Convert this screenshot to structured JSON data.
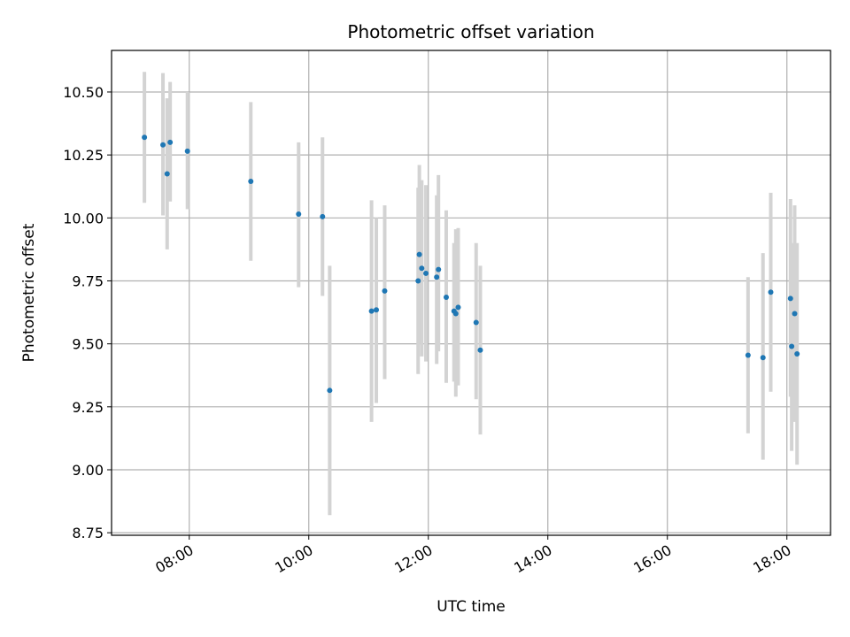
{
  "chart_data": {
    "type": "scatter",
    "title": "Photometric offset variation",
    "xlabel": "UTC time",
    "ylabel": "Photometric offset",
    "x_unit": "hour",
    "xlim": [
      6.7,
      18.73
    ],
    "ylim": [
      8.74,
      10.665
    ],
    "x_ticks": [
      8,
      10,
      12,
      14,
      16,
      18
    ],
    "x_tick_labels": [
      "08:00",
      "10:00",
      "12:00",
      "14:00",
      "16:00",
      "18:00"
    ],
    "y_ticks": [
      8.75,
      9.0,
      9.25,
      9.5,
      9.75,
      10.0,
      10.25,
      10.5
    ],
    "y_tick_labels": [
      "8.75",
      "9.00",
      "9.25",
      "9.50",
      "9.75",
      "10.00",
      "10.25",
      "10.50"
    ],
    "grid": true,
    "marker_color": "#1f77b4",
    "errorbar_color": "#d3d3d3",
    "points": [
      {
        "x": 7.25,
        "y": 10.32,
        "yerr_low": 10.06,
        "yerr_high": 10.58
      },
      {
        "x": 7.56,
        "y": 10.29,
        "yerr_low": 10.01,
        "yerr_high": 10.575
      },
      {
        "x": 7.63,
        "y": 10.175,
        "yerr_low": 9.875,
        "yerr_high": 10.475
      },
      {
        "x": 7.68,
        "y": 10.3,
        "yerr_low": 10.065,
        "yerr_high": 10.54
      },
      {
        "x": 7.97,
        "y": 10.265,
        "yerr_low": 10.035,
        "yerr_high": 10.5
      },
      {
        "x": 9.03,
        "y": 10.145,
        "yerr_low": 9.83,
        "yerr_high": 10.46
      },
      {
        "x": 9.83,
        "y": 10.015,
        "yerr_low": 9.725,
        "yerr_high": 10.3
      },
      {
        "x": 10.23,
        "y": 10.005,
        "yerr_low": 9.69,
        "yerr_high": 10.32
      },
      {
        "x": 10.35,
        "y": 9.315,
        "yerr_low": 8.82,
        "yerr_high": 9.81
      },
      {
        "x": 11.05,
        "y": 9.63,
        "yerr_low": 9.19,
        "yerr_high": 10.07
      },
      {
        "x": 11.13,
        "y": 9.635,
        "yerr_low": 9.265,
        "yerr_high": 10.0
      },
      {
        "x": 11.27,
        "y": 9.71,
        "yerr_low": 9.36,
        "yerr_high": 10.05
      },
      {
        "x": 11.83,
        "y": 9.75,
        "yerr_low": 9.38,
        "yerr_high": 10.12
      },
      {
        "x": 11.85,
        "y": 9.855,
        "yerr_low": 9.5,
        "yerr_high": 10.21
      },
      {
        "x": 11.89,
        "y": 9.8,
        "yerr_low": 9.45,
        "yerr_high": 10.15
      },
      {
        "x": 11.96,
        "y": 9.78,
        "yerr_low": 9.43,
        "yerr_high": 10.13
      },
      {
        "x": 12.14,
        "y": 9.765,
        "yerr_low": 9.42,
        "yerr_high": 10.09
      },
      {
        "x": 12.17,
        "y": 9.795,
        "yerr_low": 9.47,
        "yerr_high": 10.17
      },
      {
        "x": 12.3,
        "y": 9.685,
        "yerr_low": 9.345,
        "yerr_high": 10.03
      },
      {
        "x": 12.43,
        "y": 9.63,
        "yerr_low": 9.35,
        "yerr_high": 9.9
      },
      {
        "x": 12.46,
        "y": 9.62,
        "yerr_low": 9.29,
        "yerr_high": 9.955
      },
      {
        "x": 12.5,
        "y": 9.645,
        "yerr_low": 9.335,
        "yerr_high": 9.96
      },
      {
        "x": 12.8,
        "y": 9.585,
        "yerr_low": 9.28,
        "yerr_high": 9.9
      },
      {
        "x": 12.87,
        "y": 9.475,
        "yerr_low": 9.14,
        "yerr_high": 9.81
      },
      {
        "x": 17.35,
        "y": 9.455,
        "yerr_low": 9.145,
        "yerr_high": 9.765
      },
      {
        "x": 17.6,
        "y": 9.445,
        "yerr_low": 9.04,
        "yerr_high": 9.86
      },
      {
        "x": 17.73,
        "y": 9.705,
        "yerr_low": 9.31,
        "yerr_high": 10.1
      },
      {
        "x": 18.06,
        "y": 9.68,
        "yerr_low": 9.29,
        "yerr_high": 10.075
      },
      {
        "x": 18.08,
        "y": 9.49,
        "yerr_low": 9.075,
        "yerr_high": 9.9
      },
      {
        "x": 18.13,
        "y": 9.62,
        "yerr_low": 9.19,
        "yerr_high": 10.05
      },
      {
        "x": 18.17,
        "y": 9.46,
        "yerr_low": 9.02,
        "yerr_high": 9.9
      }
    ]
  }
}
